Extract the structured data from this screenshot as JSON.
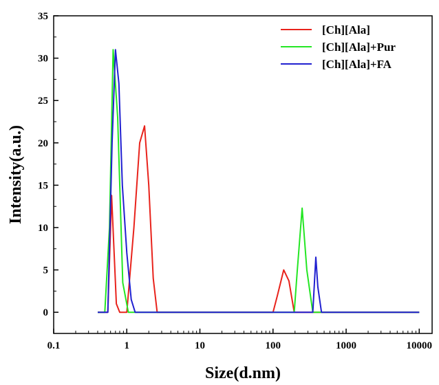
{
  "chart_data": {
    "type": "line",
    "xlabel": "Size(d.nm)",
    "ylabel": "Intensity(a.u.)",
    "x_scale": "log",
    "xlim": [
      0.1,
      15000
    ],
    "ylim": [
      -2.5,
      35
    ],
    "x_ticks": [
      {
        "value": 0.1,
        "label": "0.1"
      },
      {
        "value": 1,
        "label": "1"
      },
      {
        "value": 10,
        "label": "10"
      },
      {
        "value": 100,
        "label": "100"
      },
      {
        "value": 1000,
        "label": "1000"
      },
      {
        "value": 10000,
        "label": "10000"
      }
    ],
    "y_ticks": [
      {
        "value": 0,
        "label": "0"
      },
      {
        "value": 5,
        "label": "5"
      },
      {
        "value": 10,
        "label": "10"
      },
      {
        "value": 15,
        "label": "15"
      },
      {
        "value": 20,
        "label": "20"
      },
      {
        "value": 25,
        "label": "25"
      },
      {
        "value": 30,
        "label": "30"
      },
      {
        "value": 35,
        "label": "35"
      }
    ],
    "legend_position": "top-right",
    "grid": false,
    "series": [
      {
        "name": "[Ch][Ala]",
        "color": "#e8221b",
        "points": [
          [
            0.4,
            0
          ],
          [
            0.55,
            0
          ],
          [
            0.62,
            13.8
          ],
          [
            0.72,
            1
          ],
          [
            0.8,
            0
          ],
          [
            1.0,
            0
          ],
          [
            1.25,
            10
          ],
          [
            1.5,
            20
          ],
          [
            1.75,
            22
          ],
          [
            2.0,
            15
          ],
          [
            2.3,
            4
          ],
          [
            2.6,
            0
          ],
          [
            10,
            0
          ],
          [
            100,
            0
          ],
          [
            115,
            2
          ],
          [
            140,
            5
          ],
          [
            165,
            3.7
          ],
          [
            195,
            0
          ],
          [
            1000,
            0
          ],
          [
            10000,
            0
          ]
        ]
      },
      {
        "name": "[Ch][Ala]+Pur",
        "color": "#23e623",
        "points": [
          [
            0.4,
            0
          ],
          [
            0.5,
            0
          ],
          [
            0.58,
            10
          ],
          [
            0.65,
            31
          ],
          [
            0.75,
            23
          ],
          [
            0.88,
            3.5
          ],
          [
            1.05,
            0
          ],
          [
            10,
            0
          ],
          [
            100,
            0
          ],
          [
            195,
            0
          ],
          [
            215,
            5
          ],
          [
            250,
            12.3
          ],
          [
            290,
            5
          ],
          [
            350,
            0
          ],
          [
            10000,
            0
          ]
        ]
      },
      {
        "name": "[Ch][Ala]+FA",
        "color": "#2020d0",
        "points": [
          [
            0.4,
            0
          ],
          [
            0.55,
            0
          ],
          [
            0.63,
            20
          ],
          [
            0.7,
            31
          ],
          [
            0.78,
            27
          ],
          [
            0.87,
            15
          ],
          [
            1.0,
            7
          ],
          [
            1.15,
            1.5
          ],
          [
            1.3,
            0
          ],
          [
            10,
            0
          ],
          [
            100,
            0
          ],
          [
            350,
            0
          ],
          [
            385,
            6.5
          ],
          [
            410,
            3
          ],
          [
            460,
            0
          ],
          [
            10000,
            0
          ]
        ]
      }
    ]
  }
}
